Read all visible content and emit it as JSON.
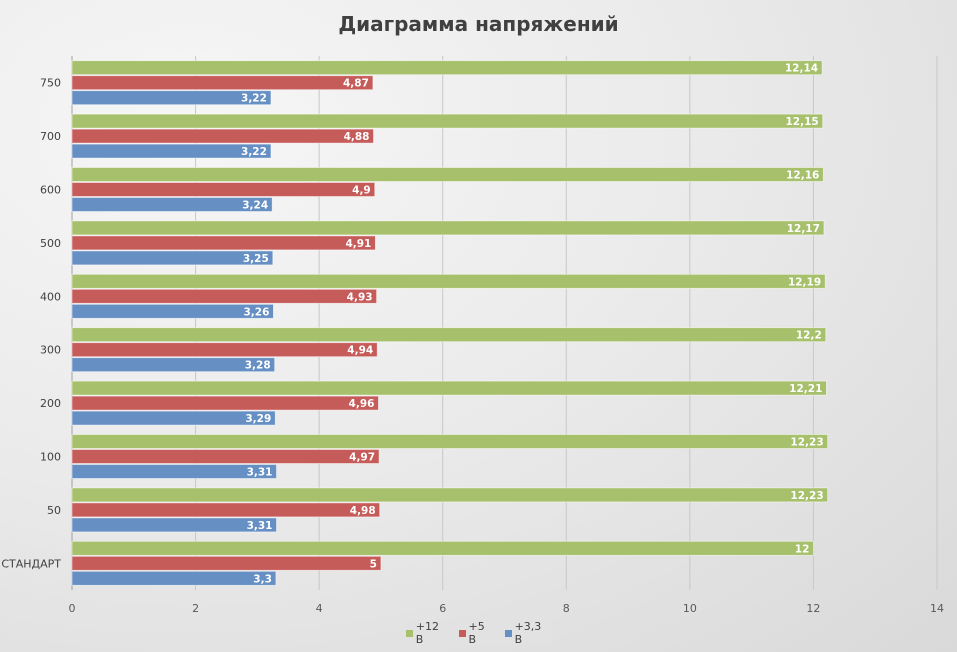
{
  "chart_data": {
    "type": "bar",
    "orientation": "horizontal",
    "title": "Диаграмма напряжений",
    "xlabel": "",
    "ylabel": "",
    "xlim": [
      0,
      14
    ],
    "xticks": [
      "0",
      "2",
      "4",
      "6",
      "8",
      "10",
      "12",
      "14"
    ],
    "grid": true,
    "legend_position": "bottom",
    "categories": [
      "СТАНДАРТ",
      "50",
      "100",
      "200",
      "300",
      "400",
      "500",
      "600",
      "700",
      "750"
    ],
    "series": [
      {
        "name": "+12 В",
        "color": "#a6c06c",
        "values": [
          12,
          12.23,
          12.23,
          12.21,
          12.2,
          12.19,
          12.17,
          12.16,
          12.15,
          12.14
        ],
        "labels": [
          "12",
          "12,23",
          "12,23",
          "12,21",
          "12,2",
          "12,19",
          "12,17",
          "12,16",
          "12,15",
          "12,14"
        ]
      },
      {
        "name": "+5 В",
        "color": "#c65c5a",
        "values": [
          5,
          4.98,
          4.97,
          4.96,
          4.94,
          4.93,
          4.91,
          4.9,
          4.88,
          4.87
        ],
        "labels": [
          "5",
          "4,98",
          "4,97",
          "4,96",
          "4,94",
          "4,93",
          "4,91",
          "4,9",
          "4,88",
          "4,87"
        ]
      },
      {
        "name": "+3,3 В",
        "color": "#6690c4",
        "values": [
          3.3,
          3.31,
          3.31,
          3.29,
          3.28,
          3.26,
          3.25,
          3.24,
          3.22,
          3.22
        ],
        "labels": [
          "3,3",
          "3,31",
          "3,31",
          "3,29",
          "3,28",
          "3,26",
          "3,25",
          "3,24",
          "3,22",
          "3,22"
        ]
      }
    ]
  }
}
